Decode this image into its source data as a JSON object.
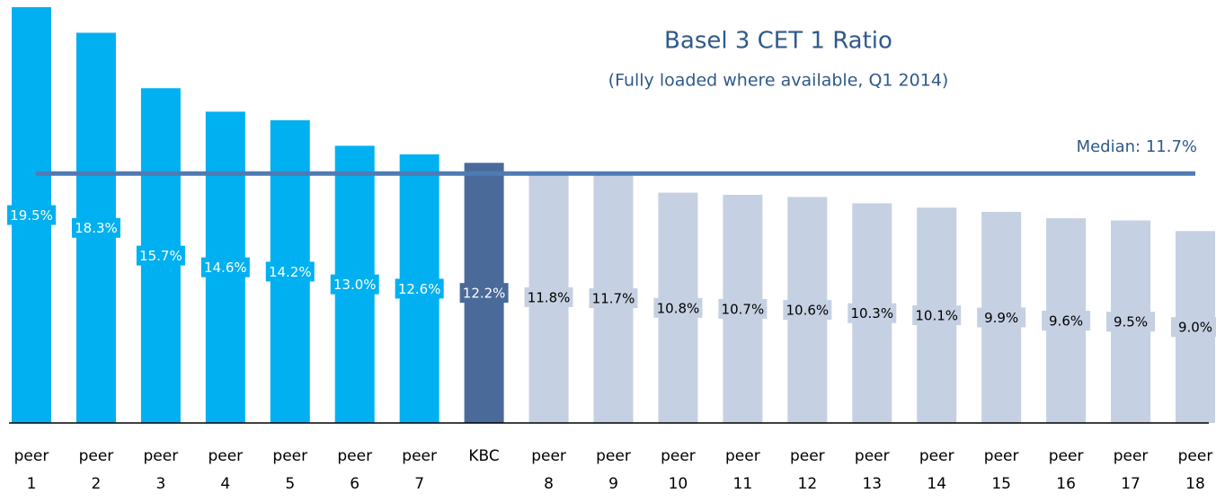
{
  "chart_data": {
    "type": "bar",
    "title": "Basel 3 CET 1 Ratio",
    "subtitle": "(Fully loaded where available, Q1 2014)",
    "categories": [
      "peer 1",
      "peer 2",
      "peer 3",
      "peer 4",
      "peer 5",
      "peer 6",
      "peer 7",
      "KBC",
      "peer 8",
      "peer 9",
      "peer 10",
      "peer 11",
      "peer 12",
      "peer 13",
      "peer 14",
      "peer 15",
      "peer 16",
      "peer 17",
      "peer 18"
    ],
    "values": [
      19.5,
      18.3,
      15.7,
      14.6,
      14.2,
      13.0,
      12.6,
      12.2,
      11.8,
      11.7,
      10.8,
      10.7,
      10.6,
      10.3,
      10.1,
      9.9,
      9.6,
      9.5,
      9.0
    ],
    "value_labels": [
      "19.5%",
      "18.3%",
      "15.7%",
      "14.6%",
      "14.2%",
      "13.0%",
      "12.6%",
      "12.2%",
      "11.8%",
      "11.7%",
      "10.8%",
      "10.7%",
      "10.6%",
      "10.3%",
      "10.1%",
      "9.9%",
      "9.6%",
      "9.5%",
      "9.0%"
    ],
    "colors": [
      "#00b0f0",
      "#00b0f0",
      "#00b0f0",
      "#00b0f0",
      "#00b0f0",
      "#00b0f0",
      "#00b0f0",
      "#4a6a9a",
      "#c5d0e2",
      "#c5d0e2",
      "#c5d0e2",
      "#c5d0e2",
      "#c5d0e2",
      "#c5d0e2",
      "#c5d0e2",
      "#c5d0e2",
      "#c5d0e2",
      "#c5d0e2",
      "#c5d0e2"
    ],
    "label_text_colors": [
      "#ffffff",
      "#ffffff",
      "#ffffff",
      "#ffffff",
      "#ffffff",
      "#ffffff",
      "#ffffff",
      "#ffffff",
      "#000000",
      "#000000",
      "#000000",
      "#000000",
      "#000000",
      "#000000",
      "#000000",
      "#000000",
      "#000000",
      "#000000",
      "#000000"
    ],
    "median": {
      "value": 11.7,
      "label": "Median: 11.7%",
      "color": "#4f7bb5"
    }
  }
}
